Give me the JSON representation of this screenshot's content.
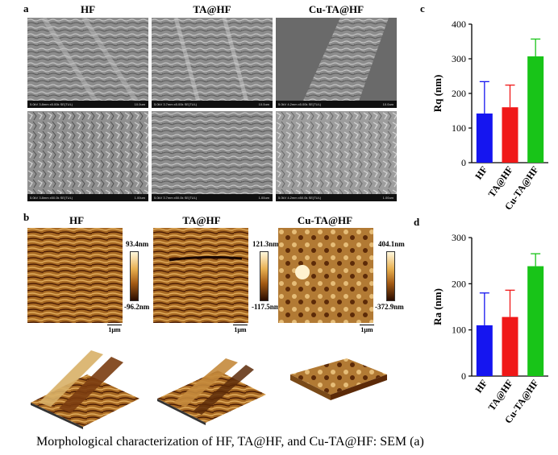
{
  "panels": {
    "a": "a",
    "b": "b",
    "c": "c",
    "d": "d"
  },
  "samples": [
    "HF",
    "TA@HF",
    "Cu-TA@HF"
  ],
  "sem": {
    "top_row_info": [
      "5.0kV 3.8mm x5.00k SE(TUL)",
      "5.0kV 3.7mm x5.00k SE(TUL)",
      "5.0kV 4.2mm x5.00k SE(TUL)"
    ],
    "top_row_scale": [
      "10.0um",
      "10.0um",
      "10.0um"
    ],
    "bottom_row_info": [
      "5.0kV 3.8mm x50.0k SE(TUL)",
      "5.0kV 3.7mm x50.0k SE(TUL)",
      "5.0kV 4.2mm x50.0k SE(TUL)"
    ],
    "bottom_row_scale": [
      "1.00um",
      "1.00um",
      "1.00um"
    ]
  },
  "afm": {
    "max": [
      "93.4nm",
      "121.3nm",
      "404.1nm"
    ],
    "min": [
      "-96.2nm",
      "-117.5nm",
      "-372.9nm"
    ],
    "scale": [
      "1μm",
      "1μm",
      "1μm"
    ]
  },
  "chart_data": [
    {
      "type": "bar",
      "panel": "c",
      "categories": [
        "HF",
        "TA@HF",
        "Cu-TA@HF"
      ],
      "values": [
        142,
        160,
        307
      ],
      "errors": [
        92,
        64,
        50
      ],
      "colors": [
        "#1515f0",
        "#f01818",
        "#18c418"
      ],
      "ylabel": "Rq (nm)",
      "ylim": [
        0,
        400
      ],
      "yticks": [
        0,
        100,
        200,
        300,
        400
      ]
    },
    {
      "type": "bar",
      "panel": "d",
      "categories": [
        "HF",
        "TA@HF",
        "Cu-TA@HF"
      ],
      "values": [
        110,
        128,
        238
      ],
      "errors": [
        70,
        58,
        27
      ],
      "colors": [
        "#1515f0",
        "#f01818",
        "#18c418"
      ],
      "ylabel": "Ra (nm)",
      "ylim": [
        0,
        300
      ],
      "yticks": [
        0,
        100,
        200,
        300
      ]
    }
  ],
  "caption": "Morphological characterization of HF, TA@HF, and Cu-TA@HF: SEM (a)"
}
